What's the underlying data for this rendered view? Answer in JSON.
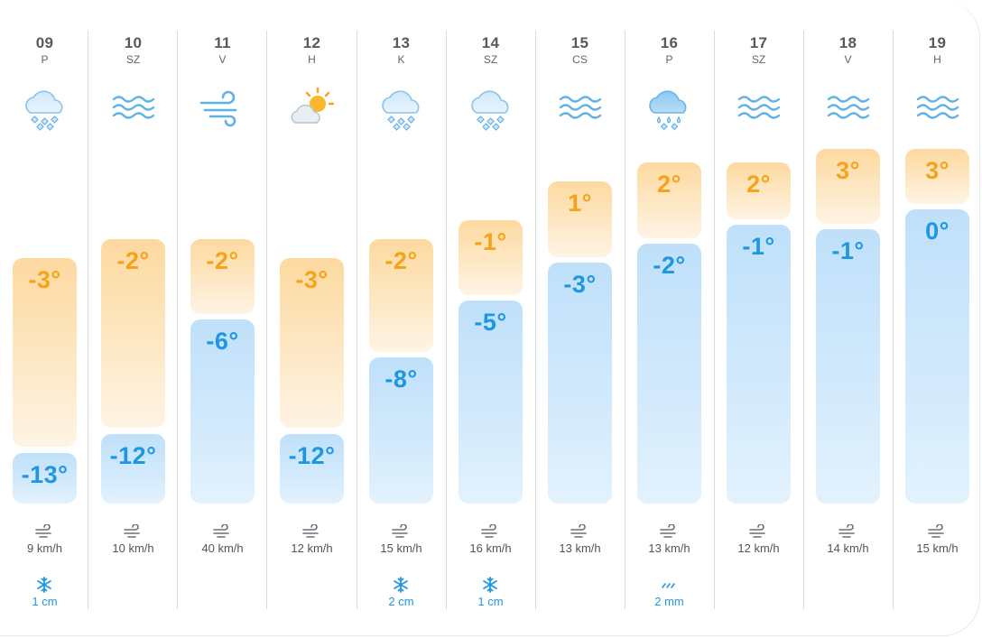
{
  "days": [
    {
      "day": "09",
      "weekday": "P",
      "icon": "snow-cloud-icon",
      "max": "-3°",
      "min": "-13°",
      "wind": "9 km/h",
      "precip_icon": "snowflake-icon",
      "precip": "1 cm"
    },
    {
      "day": "10",
      "weekday": "SZ",
      "icon": "fog-icon",
      "max": "-2°",
      "min": "-12°",
      "wind": "10 km/h",
      "precip_icon": "",
      "precip": ""
    },
    {
      "day": "11",
      "weekday": "V",
      "icon": "wind-icon",
      "max": "-2°",
      "min": "-6°",
      "wind": "40 km/h",
      "precip_icon": "",
      "precip": ""
    },
    {
      "day": "12",
      "weekday": "H",
      "icon": "sun-cloud-icon",
      "max": "-3°",
      "min": "-12°",
      "wind": "12 km/h",
      "precip_icon": "",
      "precip": ""
    },
    {
      "day": "13",
      "weekday": "K",
      "icon": "snow-cloud-icon",
      "max": "-2°",
      "min": "-8°",
      "wind": "15 km/h",
      "precip_icon": "snowflake-icon",
      "precip": "2 cm"
    },
    {
      "day": "14",
      "weekday": "SZ",
      "icon": "snow-cloud-icon",
      "max": "-1°",
      "min": "-5°",
      "wind": "16 km/h",
      "precip_icon": "snowflake-icon",
      "precip": "1 cm"
    },
    {
      "day": "15",
      "weekday": "CS",
      "icon": "fog-icon",
      "max": "1°",
      "min": "-3°",
      "wind": "13 km/h",
      "precip_icon": "",
      "precip": ""
    },
    {
      "day": "16",
      "weekday": "P",
      "icon": "sleet-cloud-icon",
      "max": "2°",
      "min": "-2°",
      "wind": "13 km/h",
      "precip_icon": "rain-icon",
      "precip": "2 mm"
    },
    {
      "day": "17",
      "weekday": "SZ",
      "icon": "fog-icon",
      "max": "2°",
      "min": "-1°",
      "wind": "12 km/h",
      "precip_icon": "",
      "precip": ""
    },
    {
      "day": "18",
      "weekday": "V",
      "icon": "fog-icon",
      "max": "3°",
      "min": "-1°",
      "wind": "14 km/h",
      "precip_icon": "",
      "precip": ""
    },
    {
      "day": "19",
      "weekday": "H",
      "icon": "fog-icon",
      "max": "3°",
      "min": "0°",
      "wind": "15 km/h",
      "precip_icon": "",
      "precip": ""
    }
  ],
  "colors": {
    "max_temp": "#f5a31a",
    "min_temp": "#1f97e0",
    "warm_bar": "#fdd9a0",
    "cold_bar": "#bfe0fa",
    "precip": "#1f97e0"
  }
}
